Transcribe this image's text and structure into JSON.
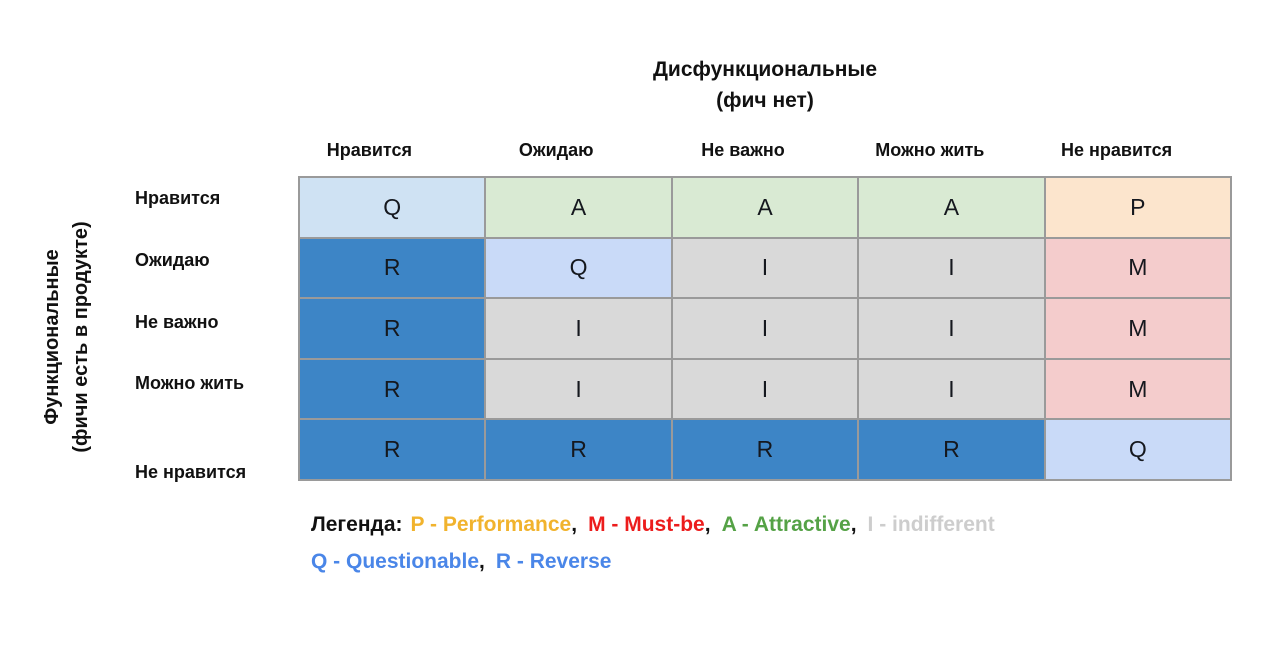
{
  "title": {
    "line1": "Дисфункциональные",
    "line2": "(фич нет)"
  },
  "y_axis": {
    "line1": "Функциональные",
    "line2": "(фичи есть в продукте)"
  },
  "columns": [
    "Нравится",
    "Ожидаю",
    "Не важно",
    "Можно жить",
    "Не нравится"
  ],
  "rows": [
    "Нравится",
    "Ожидаю",
    "Не важно",
    "Можно жить",
    "Не нравится"
  ],
  "matrix": [
    [
      "Q",
      "A",
      "A",
      "A",
      "P"
    ],
    [
      "R",
      "Q",
      "I",
      "I",
      "M"
    ],
    [
      "R",
      "I",
      "I",
      "I",
      "M"
    ],
    [
      "R",
      "I",
      "I",
      "I",
      "M"
    ],
    [
      "R",
      "R",
      "R",
      "R",
      "Q"
    ]
  ],
  "cell_colors": [
    [
      "#cfe2f3",
      "#d9ead3",
      "#d9ead3",
      "#d9ead3",
      "#fce5cd"
    ],
    [
      "#3d85c6",
      "#c9daf8",
      "#d9d9d9",
      "#d9d9d9",
      "#f4cccc"
    ],
    [
      "#3d85c6",
      "#d9d9d9",
      "#d9d9d9",
      "#d9d9d9",
      "#f4cccc"
    ],
    [
      "#3d85c6",
      "#d9d9d9",
      "#d9d9d9",
      "#d9d9d9",
      "#f4cccc"
    ],
    [
      "#3d85c6",
      "#3d85c6",
      "#3d85c6",
      "#3d85c6",
      "#c9daf8"
    ]
  ],
  "legend": {
    "label": "Легенда:",
    "comma": ",",
    "line1": [
      {
        "text": "P - Performance",
        "color": "#f1b32d"
      },
      {
        "text": "M - Must-be",
        "color": "#ec1c1c"
      },
      {
        "text": "A - Attractive",
        "color": "#55a246"
      },
      {
        "text": "I - indifferent",
        "color": "#cdcdcd"
      }
    ],
    "line2": [
      {
        "text": "Q - Questionable",
        "color": "#4a86e8"
      },
      {
        "text": "R - Reverse",
        "color": "#4a86e8"
      }
    ]
  }
}
